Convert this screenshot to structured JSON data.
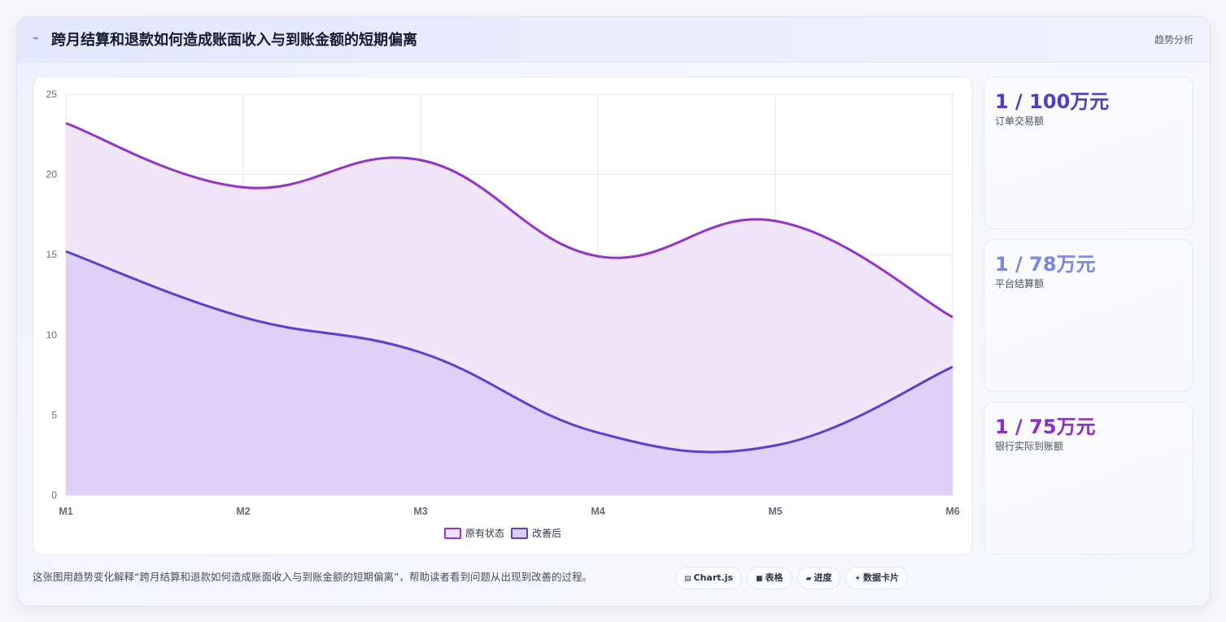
{
  "header": {
    "title": "跨月结算和退款如何造成账面收入与到账金额的短期偏离",
    "tag": "趋势分析",
    "icon": "wave-icon"
  },
  "chart_data": {
    "type": "area",
    "categories": [
      "M1",
      "M2",
      "M3",
      "M4",
      "M5",
      "M6"
    ],
    "ylim": [
      0,
      25
    ],
    "yticks": [
      0,
      5,
      10,
      15,
      20,
      25
    ],
    "grid": true,
    "legend_position": "bottom",
    "series": [
      {
        "name": "原有状态",
        "values": [
          23.2,
          19.2,
          20.9,
          14.9,
          17.1,
          11.1
        ],
        "color": "#9333c9",
        "fill": "#eee1f8"
      },
      {
        "name": "改善后",
        "values": [
          15.2,
          11.1,
          8.9,
          3.9,
          3.1,
          8.0
        ],
        "color": "#5b3fcf",
        "fill": "#dccdf7"
      }
    ]
  },
  "stats": [
    {
      "value": "1 / 100万元",
      "label": "订单交易额",
      "color": "#4f3ec4"
    },
    {
      "value": "1 / 78万元",
      "label": "平台结算额",
      "color": "#7b86df"
    },
    {
      "value": "1 / 75万元",
      "label": "银行实际到账额",
      "color": "#8a2fc8"
    }
  ],
  "caption": "这张图用趋势变化解释“跨月结算和退款如何造成账面收入与到账金额的短期偏离”，帮助读者看到问题从出现到改善的过程。",
  "chips": [
    {
      "label": "Chart.js",
      "icon": "▤",
      "icon_name": "chart-icon"
    },
    {
      "label": "表格",
      "icon": "■",
      "icon_name": "table-icon"
    },
    {
      "label": "进度",
      "icon": "▰",
      "icon_name": "progress-icon"
    },
    {
      "label": "数据卡片",
      "icon": "✦",
      "icon_name": "card-icon"
    }
  ]
}
